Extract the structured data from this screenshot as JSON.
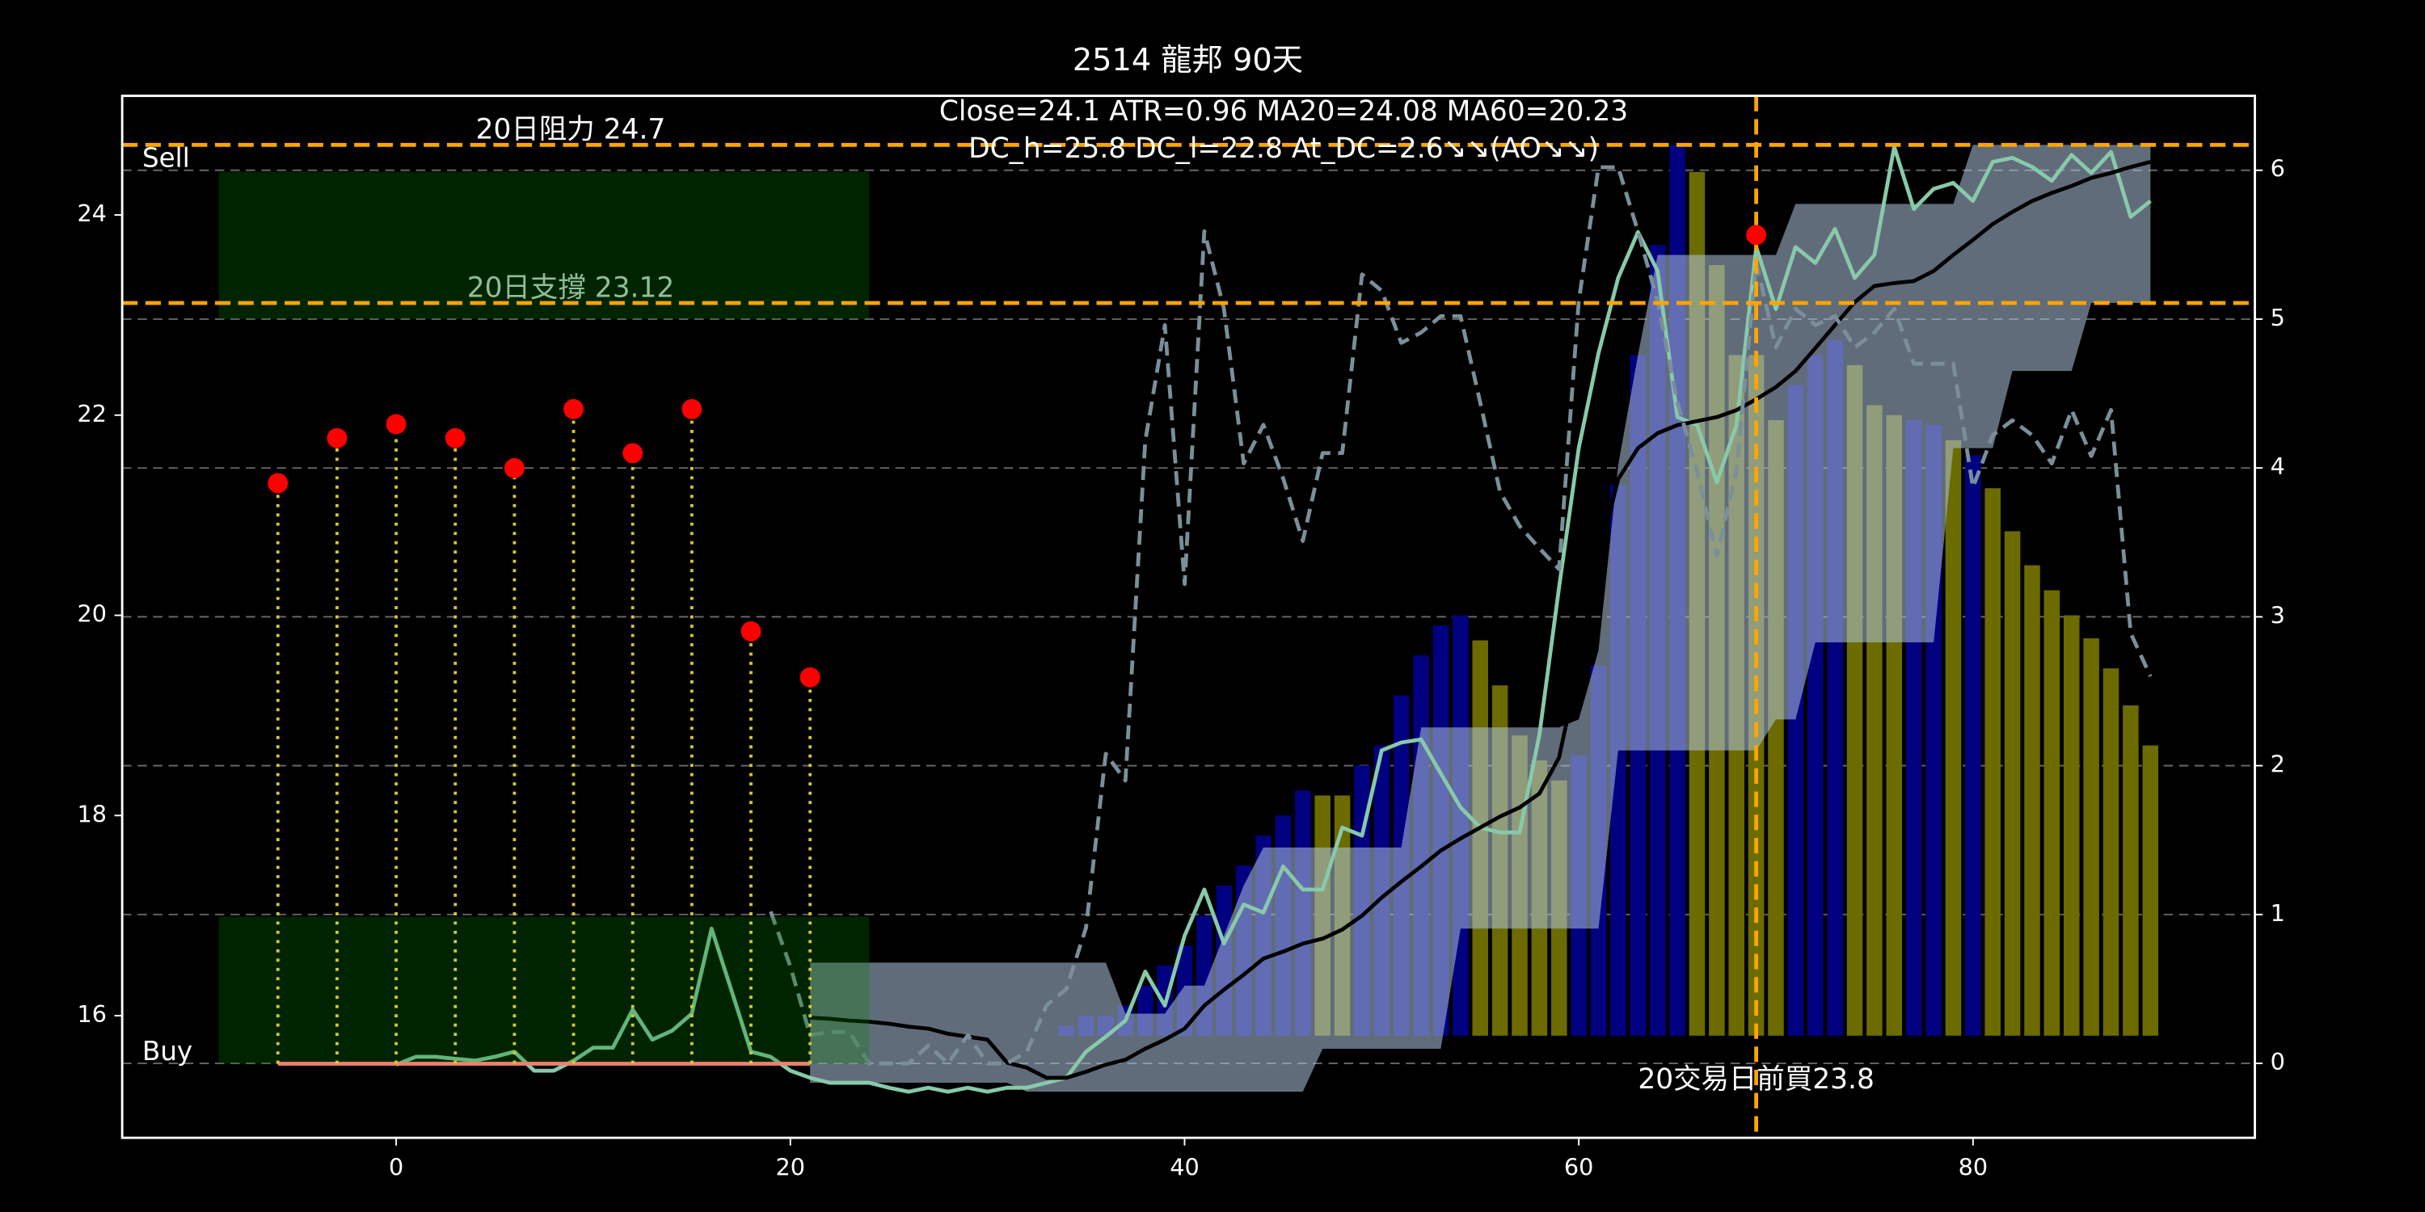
{
  "chart_data": {
    "type": "line",
    "title": "2514 龍邦 90天",
    "annotations": [
      "Close=24.1 ATR=0.96 MA20=24.08 MA60=20.23",
      "DC_h=25.8 DC_l=22.8 At_DC=2.6↘↘(AO↘↘)"
    ],
    "xlim": [
      -13.9,
      94.3
    ],
    "xticks": [
      0,
      20,
      40,
      60,
      80
    ],
    "ylim": [
      14.78,
      25.19
    ],
    "yticks": [
      16,
      18,
      20,
      22,
      24
    ],
    "y2lim": [
      -0.5,
      6.5
    ],
    "y2ticks": [
      0,
      1,
      2,
      3,
      4,
      5,
      6
    ],
    "grid": true,
    "x": [
      0,
      1,
      2,
      3,
      4,
      5,
      6,
      7,
      8,
      9,
      10,
      11,
      12,
      13,
      14,
      15,
      16,
      17,
      18,
      19,
      20,
      21,
      22,
      23,
      24,
      25,
      26,
      27,
      28,
      29,
      30,
      31,
      32,
      33,
      34,
      35,
      36,
      37,
      38,
      39,
      40,
      41,
      42,
      43,
      44,
      45,
      46,
      47,
      48,
      49,
      50,
      51,
      52,
      53,
      54,
      55,
      56,
      57,
      58,
      59,
      60,
      61,
      62,
      63,
      64,
      65,
      66,
      67,
      68,
      69,
      70,
      71,
      72,
      73,
      74,
      75,
      76,
      77,
      78,
      79,
      80,
      81,
      82,
      83,
      84,
      85,
      86,
      87,
      88,
      89
    ],
    "bars": {
      "base": 15.8,
      "values": [
        null,
        null,
        null,
        null,
        null,
        null,
        null,
        null,
        null,
        null,
        null,
        null,
        null,
        null,
        null,
        null,
        null,
        null,
        null,
        null,
        null,
        null,
        null,
        null,
        null,
        null,
        null,
        null,
        null,
        null,
        null,
        null,
        null,
        null,
        15.9,
        16.0,
        16.0,
        16.1,
        16.3,
        16.5,
        16.7,
        17.0,
        17.3,
        17.5,
        17.8,
        18.0,
        18.25,
        18.2,
        18.2,
        18.5,
        18.7,
        19.2,
        19.6,
        19.9,
        20.0,
        19.75,
        19.3,
        18.8,
        18.55,
        18.35,
        18.6,
        19.5,
        21.3,
        22.6,
        23.7,
        24.7,
        24.43,
        23.5,
        22.6,
        22.6,
        21.95,
        22.3,
        22.6,
        22.75,
        22.5,
        22.1,
        22.0,
        21.95,
        21.9,
        21.75,
        21.6,
        21.27,
        20.84,
        20.5,
        20.25,
        20.0,
        19.77,
        19.47,
        19.1,
        18.7
      ],
      "colors": [
        null,
        null,
        null,
        null,
        null,
        null,
        null,
        null,
        null,
        null,
        null,
        null,
        null,
        null,
        null,
        null,
        null,
        null,
        null,
        null,
        null,
        null,
        null,
        null,
        null,
        null,
        null,
        null,
        null,
        null,
        null,
        null,
        null,
        null,
        "#000080",
        "#000080",
        "#000080",
        "#000080",
        "#000080",
        "#000080",
        "#000080",
        "#000080",
        "#000080",
        "#000080",
        "#000080",
        "#000080",
        "#000080",
        "#6b6b00",
        "#6b6b00",
        "#000080",
        "#000080",
        "#000080",
        "#000080",
        "#000080",
        "#000080",
        "#6b6b00",
        "#6b6b00",
        "#6b6b00",
        "#6b6b00",
        "#6b6b00",
        "#000080",
        "#000080",
        "#000080",
        "#000080",
        "#000080",
        "#000080",
        "#6b6b00",
        "#6b6b00",
        "#6b6b00",
        "#6b6b00",
        "#6b6b00",
        "#000080",
        "#000080",
        "#000080",
        "#6b6b00",
        "#6b6b00",
        "#6b6b00",
        "#000080",
        "#000080",
        "#6b6b00",
        "#000080",
        "#6b6b00",
        "#6b6b00",
        "#6b6b00",
        "#6b6b00",
        "#6b6b00",
        "#6b6b00",
        "#6b6b00",
        "#6b6b00",
        "#6b6b00"
      ]
    },
    "band": {
      "color": "#b0c4de",
      "upper": [
        null,
        null,
        null,
        null,
        null,
        null,
        null,
        null,
        null,
        null,
        null,
        null,
        null,
        null,
        null,
        null,
        null,
        null,
        null,
        null,
        null,
        16.53,
        16.53,
        16.53,
        16.53,
        16.53,
        16.53,
        16.53,
        16.53,
        16.53,
        16.53,
        16.53,
        16.53,
        16.53,
        16.53,
        16.53,
        16.53,
        16.02,
        16.02,
        16.02,
        16.3,
        16.3,
        16.8,
        17.3,
        17.68,
        17.68,
        17.68,
        17.68,
        17.68,
        17.68,
        17.68,
        17.68,
        18.88,
        18.88,
        18.88,
        18.88,
        18.88,
        18.88,
        18.88,
        18.88,
        18.96,
        19.65,
        21.5,
        22.6,
        23.6,
        23.6,
        23.6,
        23.6,
        23.6,
        23.6,
        23.6,
        24.11,
        24.11,
        24.11,
        24.11,
        24.11,
        24.11,
        24.11,
        24.11,
        24.11,
        24.7,
        24.7,
        24.7,
        24.7,
        24.7,
        24.7,
        24.7,
        24.7,
        24.7,
        24.7
      ],
      "lower": [
        null,
        null,
        null,
        null,
        null,
        null,
        null,
        null,
        null,
        null,
        null,
        null,
        null,
        null,
        null,
        null,
        null,
        null,
        null,
        null,
        null,
        15.33,
        15.33,
        15.33,
        15.33,
        15.33,
        15.33,
        15.33,
        15.33,
        15.33,
        15.33,
        15.33,
        15.24,
        15.24,
        15.24,
        15.24,
        15.24,
        15.24,
        15.24,
        15.24,
        15.24,
        15.24,
        15.24,
        15.24,
        15.24,
        15.24,
        15.24,
        15.67,
        15.67,
        15.67,
        15.67,
        15.67,
        15.67,
        15.67,
        16.87,
        16.87,
        16.87,
        16.87,
        16.87,
        16.87,
        16.87,
        16.87,
        18.65,
        18.65,
        18.65,
        18.65,
        18.65,
        18.65,
        18.65,
        18.65,
        18.96,
        18.96,
        19.73,
        19.73,
        19.73,
        19.73,
        19.73,
        19.73,
        19.73,
        21.67,
        21.67,
        21.67,
        22.44,
        22.44,
        22.44,
        22.44,
        23.12,
        23.12,
        23.12,
        23.12
      ]
    },
    "series": [
      {
        "color": "#88c9a9",
        "values": [
          15.51,
          15.59,
          15.59,
          15.57,
          15.55,
          15.59,
          15.64,
          15.45,
          15.45,
          15.55,
          15.68,
          15.68,
          16.06,
          15.76,
          15.85,
          16.02,
          16.87,
          16.26,
          15.64,
          15.59,
          15.45,
          15.38,
          15.33,
          15.33,
          15.33,
          15.28,
          15.24,
          15.28,
          15.24,
          15.28,
          15.24,
          15.28,
          15.28,
          15.33,
          15.38,
          15.64,
          15.79,
          15.95,
          16.44,
          16.1,
          16.8,
          17.26,
          16.72,
          17.11,
          17.03,
          17.49,
          17.26,
          17.26,
          17.88,
          17.8,
          18.65,
          18.73,
          18.76,
          18.42,
          18.08,
          17.88,
          17.83,
          17.83,
          18.81,
          20.28,
          21.67,
          22.62,
          23.37,
          23.83,
          23.44,
          21.98,
          21.9,
          21.33,
          21.9,
          23.68,
          23.06,
          23.68,
          23.52,
          23.86,
          23.37,
          23.6,
          24.68,
          24.06,
          24.26,
          24.32,
          24.14,
          24.53,
          24.57,
          24.48,
          24.34,
          24.6,
          24.42,
          24.63,
          23.98,
          24.14
        ]
      },
      {
        "color": "#000000",
        "values": [
          null,
          null,
          null,
          null,
          null,
          null,
          null,
          null,
          null,
          null,
          null,
          null,
          null,
          null,
          null,
          null,
          null,
          null,
          null,
          null,
          null,
          15.98,
          15.97,
          15.95,
          15.94,
          15.92,
          15.89,
          15.87,
          15.82,
          15.79,
          15.76,
          15.53,
          15.48,
          15.38,
          15.38,
          15.44,
          15.51,
          15.56,
          15.67,
          15.76,
          15.87,
          16.1,
          16.26,
          16.41,
          16.57,
          16.64,
          16.72,
          16.77,
          16.86,
          17.0,
          17.18,
          17.34,
          17.49,
          17.65,
          17.77,
          17.88,
          17.99,
          18.08,
          18.22,
          18.58,
          19.5,
          20.58,
          21.36,
          21.67,
          21.82,
          21.9,
          21.94,
          21.98,
          22.05,
          22.16,
          22.28,
          22.44,
          22.67,
          22.9,
          23.13,
          23.29,
          23.32,
          23.34,
          23.44,
          23.6,
          23.75,
          23.91,
          24.03,
          24.14,
          24.22,
          24.29,
          24.37,
          24.42,
          24.48,
          24.53
        ]
      },
      {
        "color": "#7a8f99",
        "axis": "y2",
        "dashed": true,
        "values": [
          null,
          null,
          null,
          null,
          null,
          null,
          null,
          null,
          null,
          null,
          null,
          null,
          null,
          null,
          null,
          null,
          null,
          null,
          null,
          1.02,
          0.65,
          0.19,
          0.21,
          0.21,
          0,
          0,
          0,
          0.12,
          0,
          0.19,
          0,
          0,
          0.08,
          0.39,
          0.5,
          0.91,
          2.08,
          1.9,
          4.18,
          4.96,
          3.22,
          5.59,
          5.07,
          4.03,
          4.29,
          3.93,
          3.51,
          4.1,
          4.1,
          5.3,
          5.19,
          4.84,
          4.91,
          5.02,
          5.02,
          4.44,
          3.84,
          3.61,
          3.46,
          3.32,
          5.12,
          6.02,
          6.02,
          5.59,
          5.12,
          4.44,
          3.98,
          3.41,
          3.98,
          5.38,
          4.81,
          5.07,
          4.96,
          5.02,
          4.81,
          4.91,
          5.07,
          4.7,
          4.7,
          4.7,
          3.87,
          4.22,
          4.32,
          4.22,
          4.03,
          4.39,
          4.08,
          4.39,
          2.89,
          2.6
        ]
      }
    ],
    "signals": {
      "x": [
        -6,
        -3,
        0,
        3,
        6,
        9,
        12,
        15,
        18,
        21
      ],
      "values": [
        21.32,
        21.77,
        21.91,
        21.77,
        21.47,
        22.06,
        21.62,
        22.06,
        19.84,
        19.38
      ],
      "baseline": 15.52,
      "color": "#ff0000",
      "stem_color": "#d4c832",
      "baseline_color": "#f08070"
    },
    "zones": [
      {
        "label": "Sell",
        "color": "#008000",
        "x": [
          -9,
          24
        ],
        "y": [
          22.96,
          24.43
        ]
      },
      {
        "label": "Buy",
        "color": "#008000",
        "x": [
          -9,
          24
        ],
        "y": [
          15.52,
          16.99
        ]
      }
    ],
    "hlines": [
      {
        "value": 24.7,
        "label": "20日阻力 24.7",
        "color": "#ffa500"
      },
      {
        "value": 23.12,
        "label": "20日支撐 23.12",
        "color": "#ffa500"
      }
    ],
    "vline": {
      "x": 69,
      "value": 23.8,
      "label": "20交易日前買23.8",
      "color": "#ffa500"
    }
  }
}
